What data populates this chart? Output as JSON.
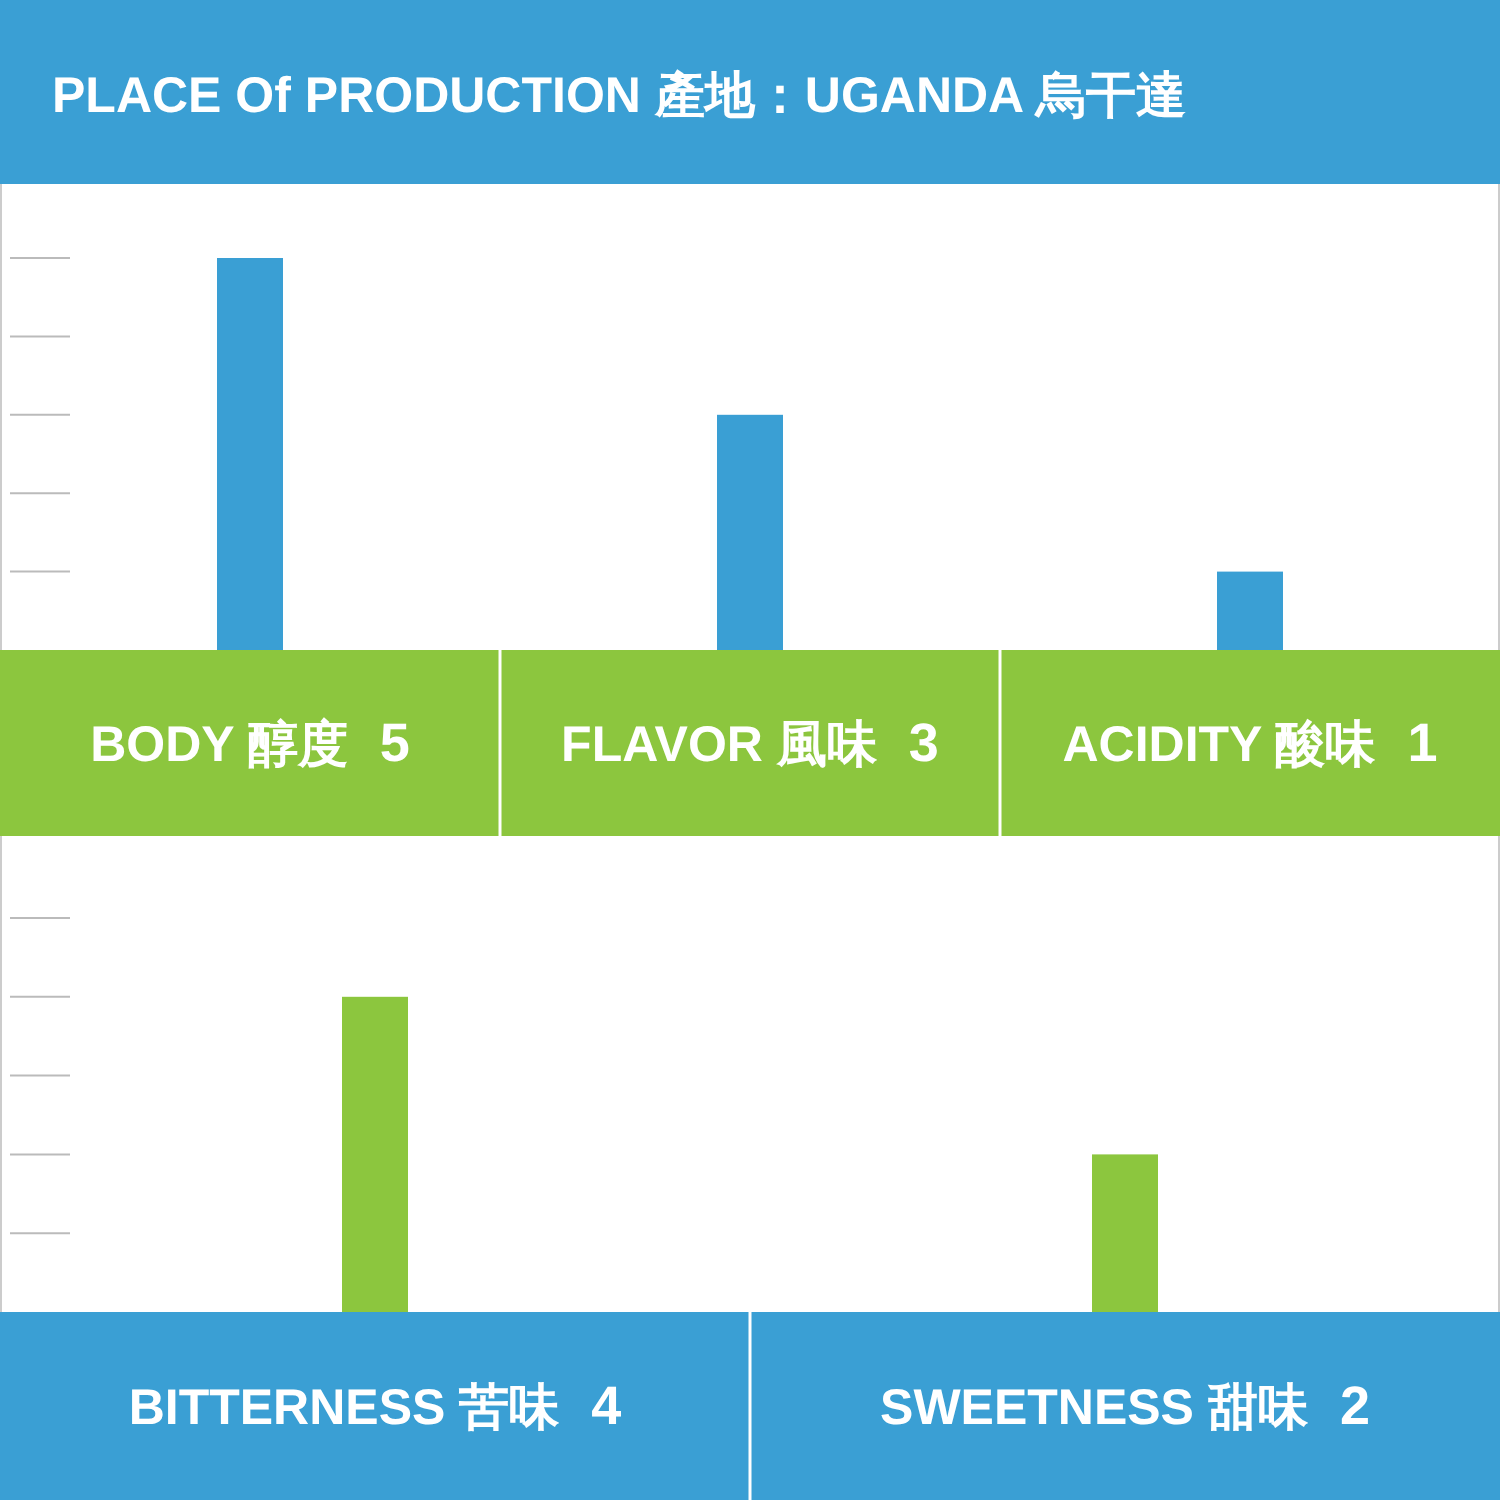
{
  "chart_data": [
    {
      "type": "bar",
      "title": "PLACE Of PRODUCTION 產地：UGANDA 烏干達",
      "categories": [
        "BODY 醇度",
        "FLAVOR 風味",
        "ACIDITY 酸味"
      ],
      "values": [
        5,
        3,
        1
      ],
      "color": "#3a9fd4",
      "tick_labels": "x",
      "data_labels": true
    },
    {
      "type": "bar",
      "categories": [
        "BITTERNESS 苦味",
        "SWEETNESS 甜味"
      ],
      "values": [
        4,
        2
      ],
      "color": "#8cc63e",
      "tick_labels": "x",
      "data_labels": true
    }
  ]
}
